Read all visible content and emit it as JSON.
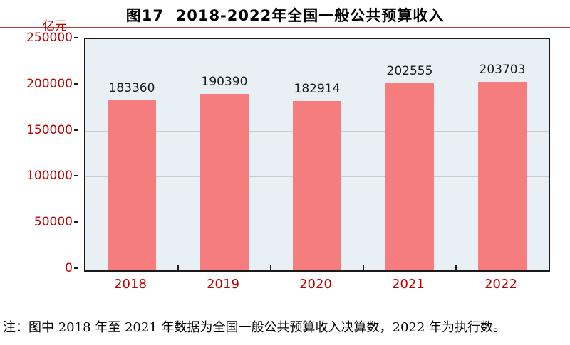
{
  "title": "图17  2018-2022年全国一般公共预算收入",
  "unit": "亿元",
  "note": "注：图中 2018 年至 2021 年数据为全国一般公共预算收入决算数，2022 年为执行数。",
  "colors": {
    "bar": "#F57D7D",
    "axis_label": "#C00000",
    "plot_bg": "#E9F0F5",
    "grid": "#CCCCCC",
    "border": "#1A1A1A",
    "rule": "#C23B3B",
    "value_label": "#1A1A1A"
  },
  "chart_data": {
    "type": "bar",
    "categories": [
      "2018",
      "2019",
      "2020",
      "2021",
      "2022"
    ],
    "values": [
      183360,
      190390,
      182914,
      202555,
      203703
    ],
    "title": "图17  2018-2022年全国一般公共预算收入",
    "xlabel": "",
    "ylabel": "亿元",
    "ylim": [
      0,
      250000
    ],
    "y_ticks": [
      0,
      50000,
      100000,
      150000,
      200000,
      250000
    ],
    "grid": true,
    "legend": false,
    "bar_color": "#F57D7D",
    "value_labels_shown": true
  }
}
